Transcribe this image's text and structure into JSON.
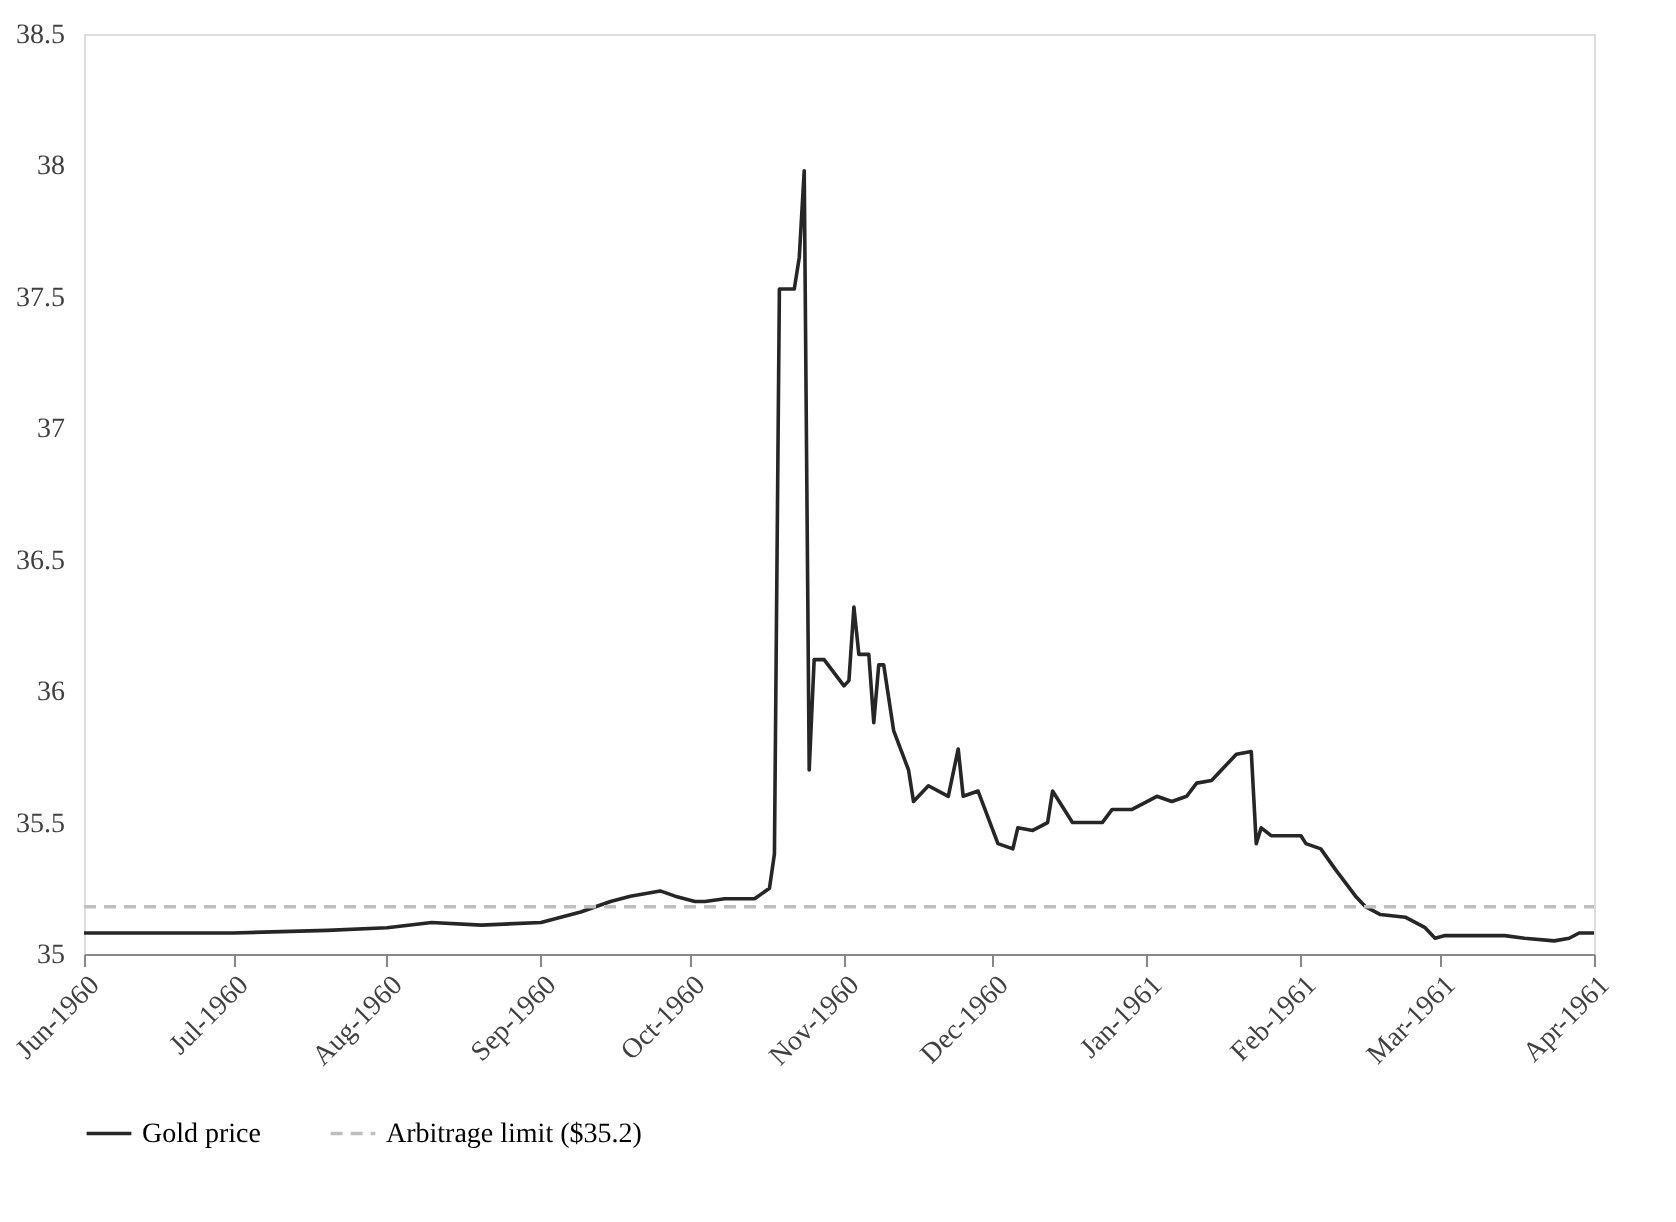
{
  "chart_data": {
    "type": "line",
    "x": [
      "1960-06-01",
      "1960-06-15",
      "1960-07-01",
      "1960-07-20",
      "1960-08-01",
      "1960-08-10",
      "1960-08-20",
      "1960-09-01",
      "1960-09-05",
      "1960-09-09",
      "1960-09-15",
      "1960-09-19",
      "1960-09-25",
      "1960-09-28",
      "1960-10-02",
      "1960-10-04",
      "1960-10-08",
      "1960-10-14",
      "1960-10-17",
      "1960-10-18",
      "1960-10-19",
      "1960-10-22",
      "1960-10-23",
      "1960-10-24",
      "1960-10-25",
      "1960-10-26",
      "1960-10-28",
      "1960-11-01",
      "1960-11-02",
      "1960-11-03",
      "1960-11-04",
      "1960-11-06",
      "1960-11-07",
      "1960-11-08",
      "1960-11-09",
      "1960-11-11",
      "1960-11-14",
      "1960-11-15",
      "1960-11-18",
      "1960-11-22",
      "1960-11-24",
      "1960-11-25",
      "1960-11-28",
      "1960-12-02",
      "1960-12-05",
      "1960-12-06",
      "1960-12-09",
      "1960-12-12",
      "1960-12-13",
      "1960-12-17",
      "1960-12-23",
      "1960-12-25",
      "1960-12-29",
      "1961-01-01",
      "1961-01-03",
      "1961-01-06",
      "1961-01-09",
      "1961-01-11",
      "1961-01-14",
      "1961-01-17",
      "1961-01-19",
      "1961-01-22",
      "1961-01-23",
      "1961-01-24",
      "1961-01-26",
      "1961-02-01",
      "1961-02-02",
      "1961-02-05",
      "1961-02-08",
      "1961-02-12",
      "1961-02-14",
      "1961-02-17",
      "1961-02-22",
      "1961-02-26",
      "1961-02-28",
      "1961-03-02",
      "1961-03-14",
      "1961-03-18",
      "1961-03-24",
      "1961-03-27",
      "1961-03-29",
      "1961-04-01"
    ],
    "series": [
      {
        "name": "Gold price",
        "color": "#262626",
        "line_style": "solid",
        "values": [
          35.08,
          35.08,
          35.08,
          35.09,
          35.1,
          35.12,
          35.11,
          35.12,
          35.14,
          35.16,
          35.2,
          35.22,
          35.24,
          35.22,
          35.2,
          35.2,
          35.21,
          35.21,
          35.25,
          35.38,
          37.53,
          37.53,
          37.65,
          37.98,
          35.7,
          36.12,
          36.12,
          36.02,
          36.04,
          36.32,
          36.14,
          36.14,
          35.88,
          36.1,
          36.1,
          35.85,
          35.7,
          35.58,
          35.64,
          35.6,
          35.78,
          35.6,
          35.62,
          35.42,
          35.4,
          35.48,
          35.47,
          35.5,
          35.62,
          35.5,
          35.5,
          35.55,
          35.55,
          35.58,
          35.6,
          35.58,
          35.6,
          35.65,
          35.66,
          35.72,
          35.76,
          35.77,
          35.42,
          35.48,
          35.45,
          35.45,
          35.42,
          35.4,
          35.32,
          35.22,
          35.18,
          35.15,
          35.14,
          35.1,
          35.06,
          35.07,
          35.07,
          35.06,
          35.05,
          35.06,
          35.08,
          35.08
        ]
      }
    ],
    "ref_lines": [
      {
        "axis": "y",
        "value": 35.18,
        "label": "Arbitrage limit ($35.2)",
        "color": "#bfbfbf",
        "line_style": "dashed"
      }
    ],
    "xlim": [
      "1960-06-01",
      "1961-04-01"
    ],
    "xticks": [
      {
        "value": "1960-06-01",
        "label": "Jun-1960"
      },
      {
        "value": "1960-07-01",
        "label": "Jul-1960"
      },
      {
        "value": "1960-08-01",
        "label": "Aug-1960"
      },
      {
        "value": "1960-09-01",
        "label": "Sep-1960"
      },
      {
        "value": "1960-10-01",
        "label": "Oct-1960"
      },
      {
        "value": "1960-11-01",
        "label": "Nov-1960"
      },
      {
        "value": "1960-12-01",
        "label": "Dec-1960"
      },
      {
        "value": "1961-01-01",
        "label": "Jan-1961"
      },
      {
        "value": "1961-02-01",
        "label": "Feb-1961"
      },
      {
        "value": "1961-03-01",
        "label": "Mar-1961"
      },
      {
        "value": "1961-04-01",
        "label": "Apr-1961"
      }
    ],
    "ylim": [
      35,
      38.5
    ],
    "yticks": [
      35,
      35.5,
      36,
      36.5,
      37,
      37.5,
      38,
      38.5
    ],
    "grid": false,
    "legend": "bottom",
    "marker": "none"
  }
}
